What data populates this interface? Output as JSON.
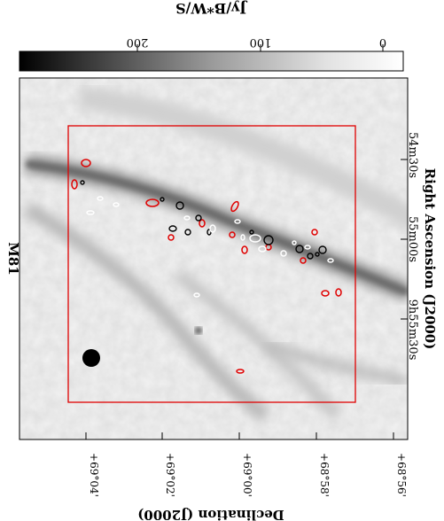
{
  "colorbar": {
    "unit_label": "Jy/B*W/S",
    "ticks": [
      "200",
      "100",
      "0"
    ]
  },
  "figure": {
    "target_label": "M81",
    "ra_axis_label": "Right Ascension (J2000)",
    "dec_axis_label": "Declination (J2000)",
    "ra_ticks": [
      "9h55m30s",
      "55m00s",
      "54m30s"
    ],
    "dec_ticks": [
      "+69°04'",
      "+69°02'",
      "+69°00'",
      "+68°58'",
      "+68°56'"
    ]
  },
  "colors": {
    "overlay_box": "#e00000",
    "contour_red": "#e00000",
    "contour_black": "#000000",
    "contour_white": "#ffffff"
  }
}
